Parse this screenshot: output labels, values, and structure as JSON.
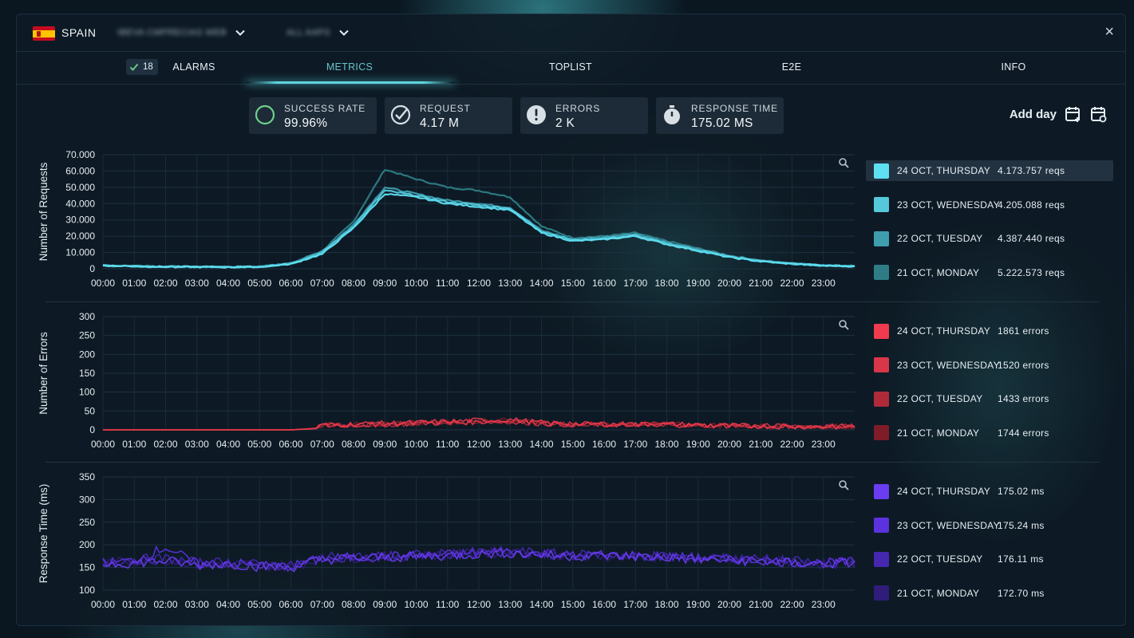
{
  "header": {
    "country": "SPAIN",
    "service_dropdown": "IBEVA CMPRECIAS WEB",
    "scope_dropdown": "ALL AAPS",
    "close": "×"
  },
  "tabs": {
    "alarm_count": "18",
    "alarms": "ALARMS",
    "metrics": "METRICS",
    "toplist": "TOPLIST",
    "e2e": "E2E",
    "info": "INFO",
    "active": "metrics"
  },
  "kpis": {
    "success_rate": {
      "label": "SUCCESS RATE",
      "value": "99.96%"
    },
    "request": {
      "label": "REQUEST",
      "value": "4.17 M"
    },
    "errors": {
      "label": "ERRORS",
      "value": "2 K"
    },
    "response_time": {
      "label": "RESPONSE TIME",
      "value": "175.02 MS"
    }
  },
  "add_day": {
    "label": "Add day"
  },
  "chart_data": [
    {
      "type": "line",
      "ylabel": "Number of Requests",
      "ylim": [
        0,
        70000
      ],
      "yticks": [
        "0",
        "10.000",
        "20.000",
        "30.000",
        "40.000",
        "50.000",
        "60.000",
        "70.000"
      ],
      "xticks": [
        "00:00",
        "01:00",
        "02:00",
        "03:00",
        "04:00",
        "05:00",
        "06:00",
        "07:00",
        "08:00",
        "09:00",
        "10:00",
        "11:00",
        "12:00",
        "13:00",
        "14:00",
        "15:00",
        "16:00",
        "17:00",
        "18:00",
        "19:00",
        "20:00",
        "21:00",
        "22:00",
        "23:00"
      ],
      "x": [
        0,
        1,
        2,
        3,
        4,
        5,
        6,
        7,
        8,
        9,
        10,
        11,
        12,
        13,
        14,
        15,
        16,
        17,
        18,
        19,
        20,
        21,
        22,
        23,
        24
      ],
      "series": [
        {
          "name": "24 OCT, THURSDAY",
          "total": "4.173.757 reqs",
          "color": "#5ee0f2",
          "values": [
            2000,
            1500,
            1200,
            1100,
            1000,
            1200,
            3000,
            9000,
            25000,
            46000,
            44000,
            40000,
            38000,
            36000,
            22000,
            17000,
            18000,
            20000,
            15000,
            11000,
            7000,
            4500,
            3000,
            2000,
            1500
          ]
        },
        {
          "name": "23 OCT, WEDNESDAY",
          "total": "4.205.088 reqs",
          "color": "#55c8dc",
          "values": [
            2000,
            1500,
            1200,
            1100,
            1000,
            1200,
            3000,
            10000,
            26000,
            48000,
            45000,
            41000,
            39000,
            37000,
            23000,
            17500,
            18500,
            20500,
            15500,
            11500,
            7500,
            4700,
            3100,
            2000,
            1500
          ]
        },
        {
          "name": "22 OCT, TUESDAY",
          "total": "4.387.440 reqs",
          "color": "#3e9eae",
          "values": [
            2000,
            1600,
            1300,
            1200,
            1100,
            1300,
            3200,
            10500,
            27000,
            50000,
            46000,
            42000,
            40000,
            37500,
            23500,
            18000,
            19500,
            21500,
            16000,
            12000,
            7800,
            4900,
            3200,
            2100,
            1600
          ]
        },
        {
          "name": "21 OCT, MONDAY",
          "total": "5.222.573 reqs",
          "color": "#2e7d86",
          "values": [
            2100,
            1700,
            1400,
            1300,
            1200,
            1400,
            3400,
            11000,
            29000,
            61000,
            55000,
            50000,
            48000,
            44000,
            26000,
            19000,
            20000,
            22000,
            17000,
            12500,
            8200,
            5100,
            3400,
            2200,
            1700
          ]
        }
      ]
    },
    {
      "type": "line",
      "ylabel": "Number of Errors",
      "ylim": [
        0,
        300
      ],
      "yticks": [
        "0",
        "50",
        "100",
        "150",
        "200",
        "250",
        "300"
      ],
      "xticks": [
        "00:00",
        "01:00",
        "02:00",
        "03:00",
        "04:00",
        "05:00",
        "06:00",
        "07:00",
        "08:00",
        "09:00",
        "10:00",
        "11:00",
        "12:00",
        "13:00",
        "14:00",
        "15:00",
        "16:00",
        "17:00",
        "18:00",
        "19:00",
        "20:00",
        "21:00",
        "22:00",
        "23:00"
      ],
      "x": [
        0,
        1,
        2,
        3,
        4,
        5,
        6,
        7,
        8,
        9,
        10,
        11,
        12,
        13,
        14,
        15,
        16,
        17,
        18,
        19,
        20,
        21,
        22,
        23,
        24
      ],
      "series": [
        {
          "name": "24 OCT, THURSDAY",
          "total": "1861 errors",
          "color": "#ef3b4d",
          "values": [
            0,
            0,
            0,
            0,
            0,
            0,
            0,
            5,
            8,
            10,
            12,
            15,
            18,
            20,
            12,
            8,
            8,
            8,
            8,
            6,
            4,
            3,
            2,
            2,
            2
          ]
        },
        {
          "name": "23 OCT, WEDNESDAY",
          "total": "1520 errors",
          "color": "#d9364a",
          "values": [
            0,
            0,
            0,
            0,
            0,
            0,
            0,
            4,
            6,
            8,
            10,
            12,
            14,
            16,
            10,
            7,
            7,
            7,
            7,
            5,
            4,
            3,
            2,
            2,
            2
          ]
        },
        {
          "name": "22 OCT, TUESDAY",
          "total": "1433 errors",
          "color": "#b02a3a",
          "values": [
            0,
            0,
            0,
            0,
            0,
            0,
            0,
            4,
            6,
            8,
            10,
            12,
            14,
            16,
            10,
            7,
            7,
            7,
            7,
            5,
            4,
            3,
            2,
            2,
            2
          ]
        },
        {
          "name": "21 OCT, MONDAY",
          "total": "1744 errors",
          "color": "#7e1c27",
          "values": [
            0,
            0,
            0,
            0,
            0,
            0,
            0,
            5,
            7,
            9,
            11,
            14,
            16,
            18,
            11,
            8,
            8,
            8,
            8,
            6,
            4,
            3,
            2,
            2,
            2
          ]
        }
      ]
    },
    {
      "type": "line",
      "ylabel": "Response Time (ms)",
      "ylim": [
        100,
        350
      ],
      "yticks": [
        "100",
        "150",
        "200",
        "250",
        "300",
        "350"
      ],
      "xticks": [
        "00:00",
        "01:00",
        "02:00",
        "03:00",
        "04:00",
        "05:00",
        "06:00",
        "07:00",
        "08:00",
        "09:00",
        "10:00",
        "11:00",
        "12:00",
        "13:00",
        "14:00",
        "15:00",
        "16:00",
        "17:00",
        "18:00",
        "19:00",
        "20:00",
        "21:00",
        "22:00",
        "23:00"
      ],
      "x": [
        0,
        1,
        2,
        3,
        4,
        5,
        6,
        7,
        8,
        9,
        10,
        11,
        12,
        13,
        14,
        15,
        16,
        17,
        18,
        19,
        20,
        21,
        22,
        23,
        24
      ],
      "series": [
        {
          "name": "24 OCT, THURSDAY",
          "total": "175.02 ms",
          "color": "#6a3cf2",
          "values": [
            158,
            160,
            165,
            155,
            158,
            152,
            150,
            168,
            170,
            172,
            174,
            176,
            180,
            182,
            178,
            175,
            176,
            174,
            172,
            168,
            166,
            164,
            160,
            158,
            160
          ]
        },
        {
          "name": "23 OCT, WEDNESDAY",
          "total": "175.24 ms",
          "color": "#5b32de",
          "values": [
            160,
            165,
            195,
            158,
            160,
            155,
            152,
            170,
            172,
            174,
            176,
            178,
            182,
            184,
            180,
            176,
            178,
            176,
            174,
            170,
            168,
            166,
            162,
            160,
            162
          ]
        },
        {
          "name": "22 OCT, TUESDAY",
          "total": "176.11 ms",
          "color": "#4527b0",
          "values": [
            162,
            168,
            170,
            160,
            162,
            156,
            154,
            172,
            174,
            176,
            178,
            180,
            184,
            186,
            182,
            178,
            178,
            176,
            175,
            172,
            170,
            168,
            164,
            160,
            162
          ]
        },
        {
          "name": "21 OCT, MONDAY",
          "total": "172.70 ms",
          "color": "#2f1d7a",
          "values": [
            160,
            164,
            166,
            158,
            160,
            154,
            152,
            170,
            172,
            174,
            176,
            178,
            182,
            184,
            180,
            176,
            176,
            174,
            172,
            170,
            168,
            166,
            162,
            158,
            160
          ]
        }
      ]
    }
  ]
}
